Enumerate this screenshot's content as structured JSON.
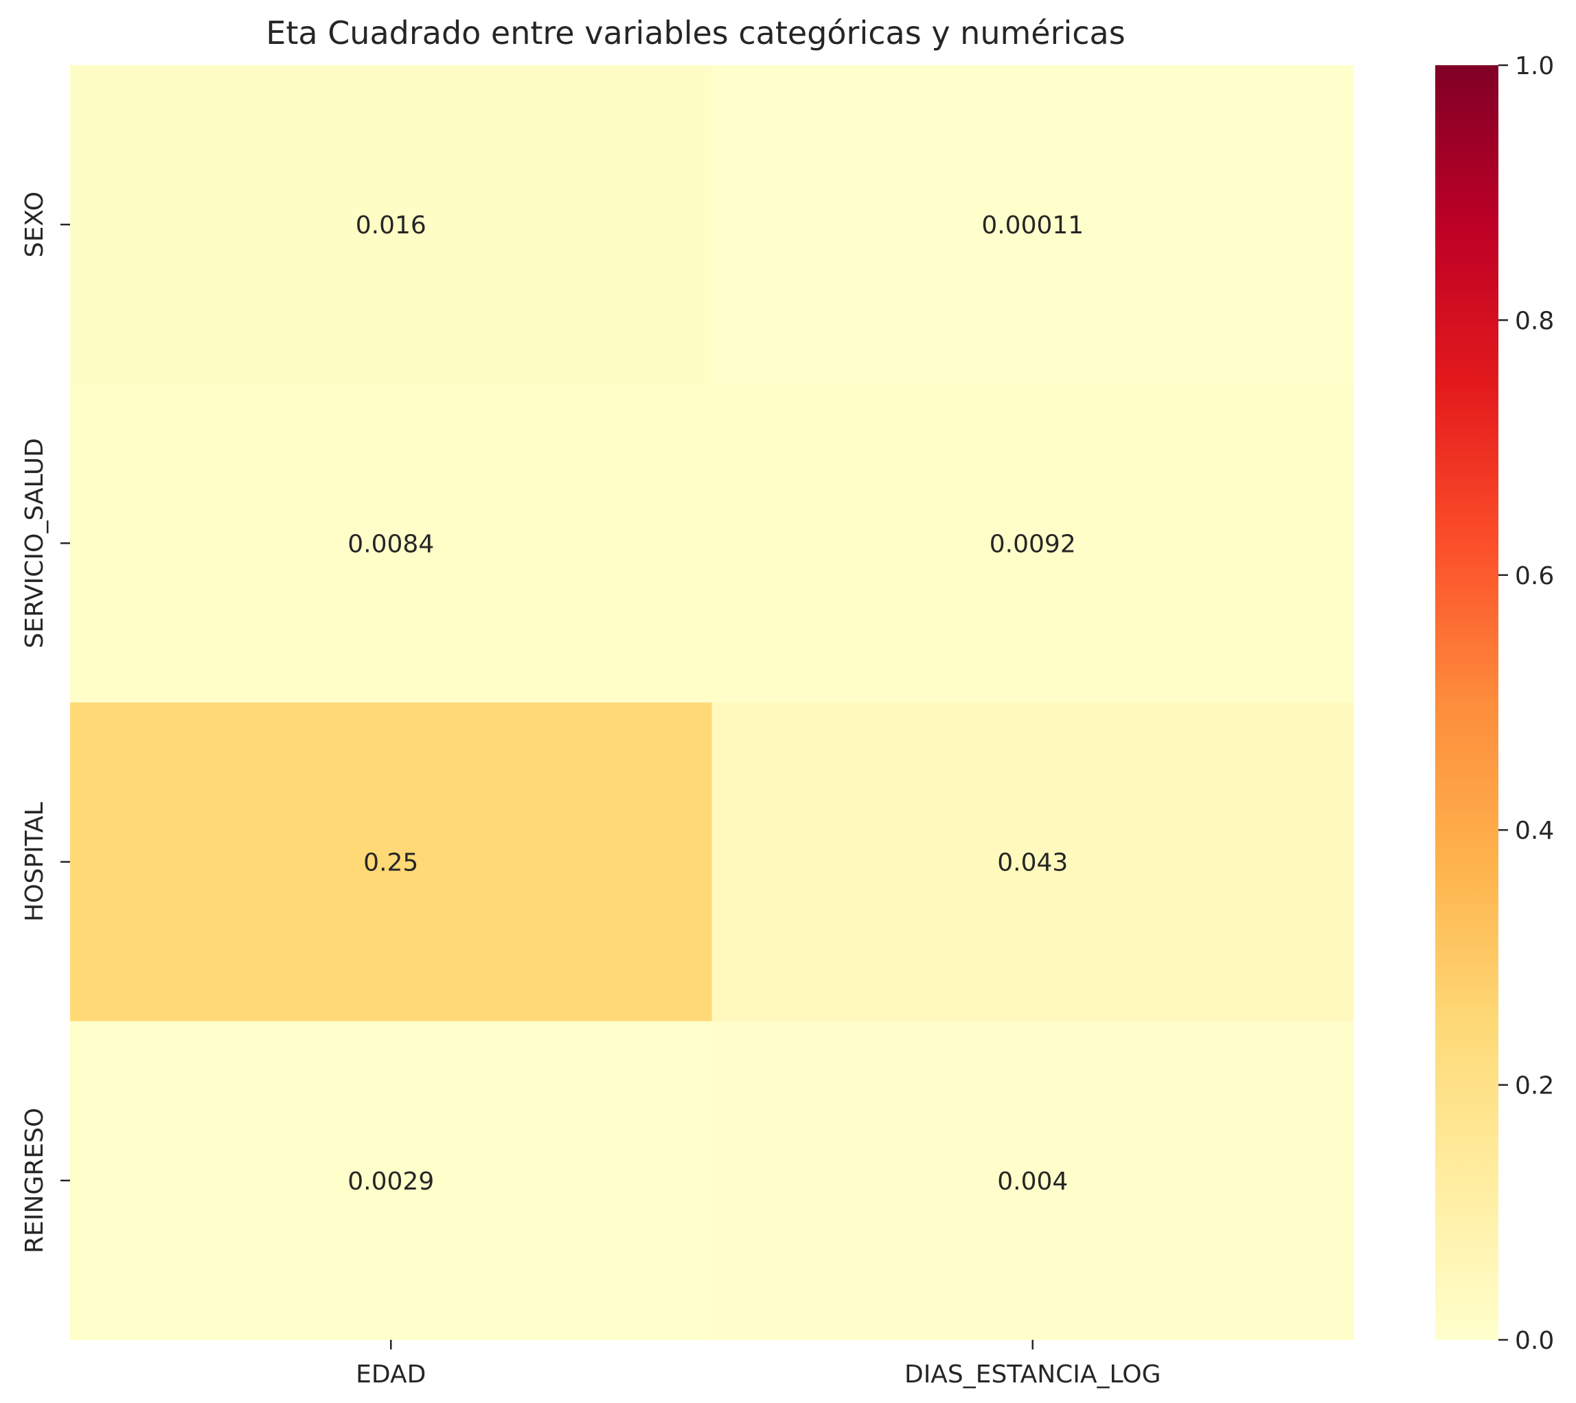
{
  "chart_data": {
    "type": "heatmap",
    "title": "Eta Cuadrado entre variables categóricas y numéricas",
    "xlabel": "",
    "ylabel": "",
    "x_categories": [
      "EDAD",
      "DIAS_ESTANCIA_LOG"
    ],
    "y_categories": [
      "SEXO",
      "SERVICIO_SALUD",
      "HOSPITAL",
      "REINGRESO"
    ],
    "values": [
      [
        0.016,
        0.00011
      ],
      [
        0.0084,
        0.0092
      ],
      [
        0.25,
        0.043
      ],
      [
        0.0029,
        0.004
      ]
    ],
    "value_labels": [
      [
        "0.016",
        "0.00011"
      ],
      [
        "0.0084",
        "0.0092"
      ],
      [
        "0.25",
        "0.043"
      ],
      [
        "0.0029",
        "0.004"
      ]
    ],
    "colormap": "YlOrRd",
    "colorbar": {
      "range": [
        0,
        1
      ],
      "ticks": [
        0.0,
        0.2,
        0.4,
        0.6,
        0.8,
        1.0
      ],
      "tick_labels": [
        "0.0",
        "0.2",
        "0.4",
        "0.6",
        "0.8",
        "1.0"
      ],
      "placement": "right"
    },
    "grid": false
  }
}
